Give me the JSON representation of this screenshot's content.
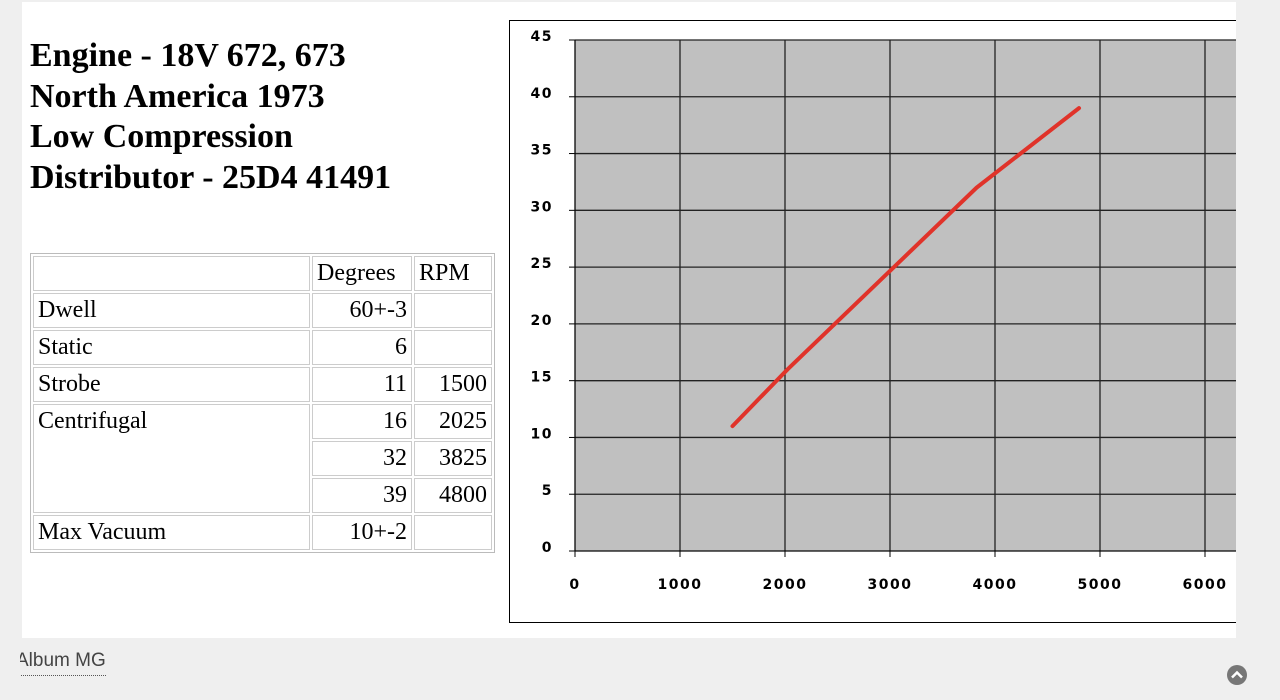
{
  "header": {
    "lines": [
      "Engine - 18V 672, 673",
      "North America 1973",
      "Low Compression",
      "Distributor - 25D4 41491"
    ]
  },
  "table": {
    "columns": [
      "Degrees",
      "RPM"
    ],
    "rows": [
      {
        "label": "Dwell",
        "degrees": "60+-3"
      },
      {
        "label": "Static",
        "degrees": 6
      },
      {
        "label": "Strobe",
        "degrees": 11,
        "rpm": 1500
      },
      {
        "label": "Centrifugal",
        "degrees": 16,
        "rpm": 2025
      },
      {
        "degrees": 32,
        "rpm": 3825
      },
      {
        "degrees": 39,
        "rpm": 4800
      },
      {
        "label": "Max Vacuum",
        "degrees": "10+-2"
      }
    ]
  },
  "chart_data": {
    "type": "line",
    "x": [
      1500,
      2025,
      3825,
      4800
    ],
    "series": [
      {
        "color": "#e0332a",
        "values": [
          11,
          16,
          32,
          39
        ]
      }
    ],
    "xlim": [
      0,
      6300
    ],
    "xticks": [
      0,
      1000,
      2000,
      3000,
      4000,
      5000,
      6000
    ],
    "ylim": [
      0,
      45
    ],
    "yticks": [
      0,
      5,
      10,
      15,
      20,
      25,
      30,
      35,
      40,
      45
    ],
    "grid": true,
    "background": "#c0c0c0"
  },
  "footer": {
    "link": "Album MG"
  }
}
